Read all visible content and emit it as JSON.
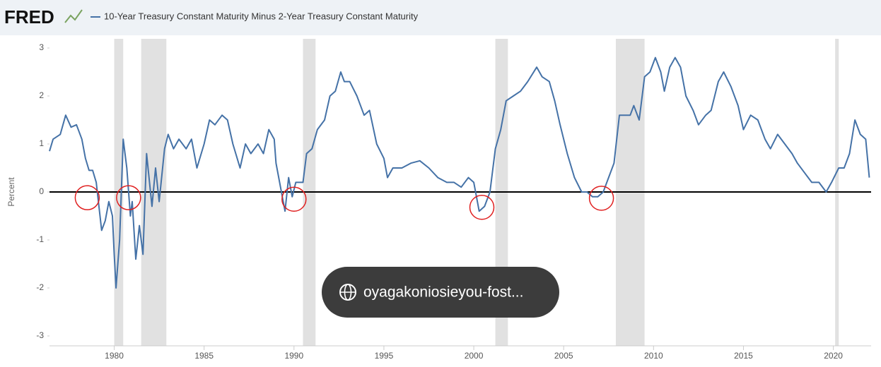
{
  "chart_data": {
    "type": "line",
    "logo": "FRED",
    "y_label": "Percent",
    "xlim": [
      1976.4,
      2022.1
    ],
    "ylim": [
      -3,
      3
    ],
    "xticks": [
      1980,
      1985,
      1990,
      1995,
      2000,
      2005,
      2010,
      2015,
      2020
    ],
    "yticks": [
      -3,
      -2,
      -1,
      0,
      1,
      2,
      3
    ],
    "grid": false,
    "zero_line": true,
    "recessions": [
      [
        1980.0,
        1980.5
      ],
      [
        1981.5,
        1982.9
      ],
      [
        1990.5,
        1991.2
      ],
      [
        2001.2,
        2001.9
      ],
      [
        2007.9,
        2009.5
      ],
      [
        2020.1,
        2020.3
      ]
    ],
    "recession_color": "#e1e1e1",
    "highlights": [
      {
        "x": 1978.5,
        "y": -0.12
      },
      {
        "x": 1980.8,
        "y": -0.12
      },
      {
        "x": 1990.0,
        "y": -0.15
      },
      {
        "x": 2000.45,
        "y": -0.32
      },
      {
        "x": 2007.1,
        "y": -0.13
      }
    ],
    "highlight_color": "#e02020",
    "overlay_text": "oyagakoniosieyou-fost...",
    "x": [
      1976.4,
      1976.6,
      1977.0,
      1977.3,
      1977.6,
      1977.9,
      1978.2,
      1978.4,
      1978.6,
      1978.8,
      1979.0,
      1979.3,
      1979.5,
      1979.7,
      1979.9,
      1980.0,
      1980.1,
      1980.3,
      1980.5,
      1980.7,
      1980.9,
      1981.0,
      1981.2,
      1981.4,
      1981.6,
      1981.8,
      1982.1,
      1982.3,
      1982.5,
      1982.8,
      1983.0,
      1983.3,
      1983.6,
      1984.0,
      1984.3,
      1984.6,
      1985.0,
      1985.3,
      1985.6,
      1986.0,
      1986.3,
      1986.6,
      1987.0,
      1987.3,
      1987.6,
      1988.0,
      1988.3,
      1988.6,
      1988.9,
      1989.0,
      1989.3,
      1989.5,
      1989.7,
      1989.9,
      1990.1,
      1990.5,
      1990.7,
      1991.0,
      1991.3,
      1991.7,
      1992.0,
      1992.3,
      1992.6,
      1992.8,
      1993.1,
      1993.5,
      1993.9,
      1994.2,
      1994.6,
      1995.0,
      1995.2,
      1995.5,
      1996.0,
      1996.5,
      1997.0,
      1997.5,
      1998.0,
      1998.5,
      1998.9,
      1999.3,
      1999.7,
      2000.0,
      2000.3,
      2000.6,
      2000.9,
      2001.2,
      2001.5,
      2001.8,
      2002.2,
      2002.6,
      2003.0,
      2003.5,
      2003.8,
      2004.2,
      2004.5,
      2004.8,
      2005.2,
      2005.6,
      2006.0,
      2006.3,
      2006.6,
      2006.9,
      2007.2,
      2007.5,
      2007.8,
      2008.1,
      2008.4,
      2008.7,
      2008.9,
      2009.2,
      2009.5,
      2009.8,
      2010.1,
      2010.4,
      2010.6,
      2010.9,
      2011.2,
      2011.5,
      2011.8,
      2012.2,
      2012.5,
      2012.9,
      2013.2,
      2013.6,
      2013.9,
      2014.3,
      2014.7,
      2015.0,
      2015.4,
      2015.8,
      2016.2,
      2016.5,
      2016.9,
      2017.3,
      2017.7,
      2018.0,
      2018.4,
      2018.8,
      2019.2,
      2019.6,
      2019.9,
      2020.3,
      2020.6,
      2020.9,
      2021.2,
      2021.5,
      2021.8,
      2022.0
    ],
    "series": [
      {
        "name": "10-Year Treasury Constant Maturity Minus 2-Year Treasury Constant Maturity",
        "color": "#4572a7",
        "values": [
          0.85,
          1.1,
          1.2,
          1.6,
          1.35,
          1.4,
          1.1,
          0.7,
          0.45,
          0.45,
          0.2,
          -0.8,
          -0.6,
          -0.2,
          -0.5,
          -1.3,
          -2.0,
          -1.0,
          1.1,
          0.5,
          -0.5,
          -0.2,
          -1.4,
          -0.7,
          -1.3,
          0.8,
          -0.3,
          0.5,
          -0.2,
          0.9,
          1.2,
          0.9,
          1.1,
          0.9,
          1.1,
          0.5,
          1.0,
          1.5,
          1.4,
          1.6,
          1.5,
          1.0,
          0.5,
          1.0,
          0.8,
          1.0,
          0.8,
          1.3,
          1.1,
          0.6,
          0.0,
          -0.4,
          0.3,
          -0.1,
          0.2,
          0.2,
          0.8,
          0.9,
          1.3,
          1.5,
          2.0,
          2.1,
          2.5,
          2.3,
          2.3,
          2.0,
          1.6,
          1.7,
          1.0,
          0.7,
          0.3,
          0.5,
          0.5,
          0.6,
          0.65,
          0.5,
          0.3,
          0.2,
          0.2,
          0.1,
          0.3,
          0.2,
          -0.4,
          -0.3,
          0.0,
          0.9,
          1.3,
          1.9,
          2.0,
          2.1,
          2.3,
          2.6,
          2.4,
          2.3,
          1.9,
          1.4,
          0.8,
          0.3,
          0.0,
          0.0,
          -0.1,
          -0.1,
          0.0,
          0.3,
          0.6,
          1.6,
          1.6,
          1.6,
          1.8,
          1.5,
          2.4,
          2.5,
          2.8,
          2.5,
          2.1,
          2.6,
          2.8,
          2.6,
          2.0,
          1.7,
          1.4,
          1.6,
          1.7,
          2.3,
          2.5,
          2.2,
          1.8,
          1.3,
          1.6,
          1.5,
          1.1,
          0.9,
          1.2,
          1.0,
          0.8,
          0.6,
          0.4,
          0.2,
          0.2,
          0.0,
          0.2,
          0.5,
          0.5,
          0.8,
          1.5,
          1.2,
          1.1,
          0.3
        ]
      }
    ]
  }
}
